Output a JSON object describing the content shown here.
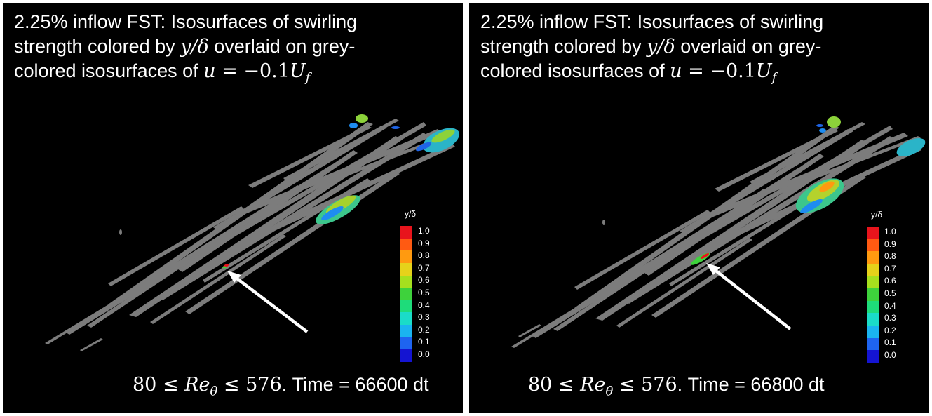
{
  "panels": [
    {
      "caption": {
        "line1": "2.25% inflow FST: Isosurfaces of swirling",
        "line2_a": "strength colored by ",
        "line2_math": "y/δ",
        "line2_b": " overlaid on grey-",
        "line3_a": "colored isosurfaces of ",
        "line3_math_u": "u",
        "line3_math_eq": " = −0.1",
        "line3_math_U": "U",
        "line3_math_sub": "f"
      },
      "footer": {
        "math_a": "80 ≤ ",
        "math_re": "Re",
        "math_sub": "θ",
        "math_b": " ≤ 576",
        "text": ". Time = 66600 dt"
      },
      "legend_title": "y/δ",
      "legend_labels": [
        "1.0",
        "0.9",
        "0.8",
        "0.7",
        "0.6",
        "0.5",
        "0.4",
        "0.3",
        "0.2",
        "0.1",
        "0.0"
      ]
    },
    {
      "caption": {
        "line1": "2.25% inflow FST: Isosurfaces of swirling",
        "line2_a": "strength colored by ",
        "line2_math": "y/δ",
        "line2_b": " overlaid on grey-",
        "line3_a": "colored isosurfaces of ",
        "line3_math_u": "u",
        "line3_math_eq": " = −0.1",
        "line3_math_U": "U",
        "line3_math_sub": "f"
      },
      "footer": {
        "math_a": "80 ≤ ",
        "math_re": "Re",
        "math_sub": "θ",
        "math_b": " ≤ 576",
        "text": ". Time = 66800 dt"
      },
      "legend_title": "y/δ",
      "legend_labels": [
        "1.0",
        "0.9",
        "0.8",
        "0.7",
        "0.6",
        "0.5",
        "0.4",
        "0.3",
        "0.2",
        "0.1",
        "0.0"
      ]
    }
  ],
  "colormap": [
    "#e8141c",
    "#ff5a12",
    "#ff9a10",
    "#e6d21a",
    "#a6e01e",
    "#3ed23c",
    "#1edc7a",
    "#1adcc8",
    "#1ab4f0",
    "#1e64f0",
    "#1414d2"
  ]
}
